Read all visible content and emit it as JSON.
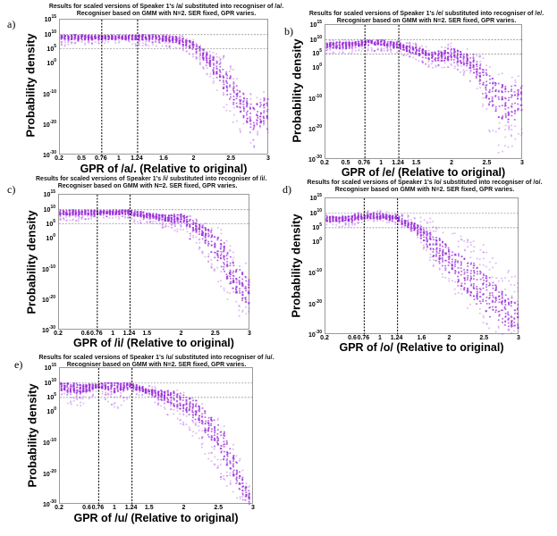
{
  "figure": {
    "panels": [
      {
        "letter": "a)",
        "title_line1": "Results for scaled versions of Speaker 1's /a/ substituted into recogniser of /a/.",
        "title_line2": "Recogniser based on GMM with N=2. SER fixed, GPR varies.",
        "xlabel": "GPR of /a/. (Relative to original)",
        "ylabel": "Probability density",
        "xticks": [
          "0.2",
          "0.5",
          "0.76",
          "1",
          "1.24",
          "1.6",
          "2",
          "2.5",
          "3"
        ],
        "yticks": [
          "10^15",
          "10^10",
          "10^5",
          "10^0",
          "10^-10",
          "10^-20",
          "10^-30"
        ]
      },
      {
        "letter": "b)",
        "title_line1": "Results for scaled versions of Speaker 1's /e/ substituted into recogniser of /e/.",
        "title_line2": "Recogniser based on GMM with N=2. SER fixed, GPR varies.",
        "xlabel": "GPR of /e/ (Relative to original)",
        "ylabel": "Probability density",
        "xticks": [
          "0.2",
          "0.5",
          "0.76",
          "1",
          "1.24",
          "1.5",
          "2",
          "2.5",
          "3"
        ],
        "yticks": [
          "10^15",
          "10^10",
          "10^5",
          "10^0",
          "10^-10",
          "10^-20",
          "10^-30"
        ]
      },
      {
        "letter": "c)",
        "title_line1": "Results for scaled versions of Speaker 1's /i/ substituted into recogniser of /i/.",
        "title_line2": "Recogniser based on GMM with N=2. SER fixed, GPR varies.",
        "xlabel": "GPR of /i/ (Relative to original)",
        "ylabel": "Probability density",
        "xticks": [
          "0.2",
          "0.6",
          "0.76",
          "1",
          "1.24",
          "1.5",
          "2",
          "2.5",
          "3"
        ],
        "yticks": [
          "10^15",
          "10^10",
          "10^5",
          "10^0",
          "10^-10",
          "10^-20",
          "10^-30"
        ]
      },
      {
        "letter": "d)",
        "title_line1": "Results for scaled versions of Speaker 1's /o/ substituted into recogniser of /o/.",
        "title_line2": "Recogniser based on GMM with N=2. SER fixed, GPR varies.",
        "xlabel": "GPR of /o/ (Relative to original)",
        "ylabel": "Probability density",
        "xticks": [
          "0.2",
          "0.6",
          "0.76",
          "1",
          "1.24",
          "1.6",
          "2",
          "2.5",
          "3"
        ],
        "yticks": [
          "10^15",
          "10^10",
          "10^5",
          "10^0",
          "10^-10",
          "10^-20",
          "10^-30"
        ]
      },
      {
        "letter": "e)",
        "title_line1": "Results for scaled versions of Speaker 1's /u/ substituted into recogniser of /u/.",
        "title_line2": "Recogniser based on GMM with N=2. SER fixed, GPR varies.",
        "xlabel": "GPR of /u/ (Relative to original)",
        "ylabel": "Probability density",
        "xticks": [
          "0.2",
          "0.6",
          "0.76",
          "1",
          "1.24",
          "1.5",
          "2",
          "2.5",
          "3"
        ],
        "yticks": [
          "10^15",
          "10^10",
          "10^5",
          "10^0",
          "10^-10",
          "10^-20",
          "10^-30"
        ]
      }
    ]
  },
  "chart_data": [
    {
      "type": "scatter",
      "panel": "a",
      "title": "Results for scaled versions of Speaker 1's /a/ substituted into recogniser of /a/. Recogniser based on GMM with N=2. SER fixed, GPR varies.",
      "xlabel": "GPR of /a/. (Relative to original)",
      "ylabel": "Probability density",
      "xlim": [
        0.2,
        3
      ],
      "ylim_exponent": [
        -30,
        15
      ],
      "yscale": "log",
      "vlines": [
        0.76,
        1.24
      ],
      "hlines_exponent": [
        10,
        5
      ],
      "color": "#9b30d9",
      "envelope": {
        "x": [
          0.2,
          0.5,
          0.76,
          1.0,
          1.24,
          1.5,
          1.8,
          2.0,
          2.2,
          2.4,
          2.6,
          2.8,
          3.0
        ],
        "upper_exp": [
          10,
          10,
          10,
          10,
          10,
          10,
          10,
          8,
          5,
          3,
          -5,
          -10,
          -8
        ],
        "lower_exp": [
          6,
          6,
          7,
          7,
          6,
          6,
          5,
          2,
          -5,
          -15,
          -22,
          -28,
          -24
        ],
        "median_exp": [
          9,
          9,
          9,
          9,
          9,
          9,
          8,
          6,
          1,
          -5,
          -12,
          -18,
          -14
        ]
      }
    },
    {
      "type": "scatter",
      "panel": "b",
      "title": "Results for scaled versions of Speaker 1's /e/ substituted into recogniser of /e/. Recogniser based on GMM with N=2. SER fixed, GPR varies.",
      "xlabel": "GPR of /e/ (Relative to original)",
      "ylabel": "Probability density",
      "xlim": [
        0.2,
        3
      ],
      "ylim_exponent": [
        -30,
        15
      ],
      "yscale": "log",
      "vlines": [
        0.76,
        1.24
      ],
      "hlines_exponent": [
        10,
        5
      ],
      "color": "#9b30d9",
      "envelope": {
        "x": [
          0.2,
          0.5,
          0.76,
          1.0,
          1.24,
          1.5,
          1.7,
          2.0,
          2.2,
          2.4,
          2.6,
          2.8,
          3.0
        ],
        "upper_exp": [
          10,
          10,
          10,
          10,
          10,
          9,
          7,
          9,
          7,
          5,
          0,
          -3,
          -2
        ],
        "lower_exp": [
          5,
          5,
          6,
          6,
          5,
          3,
          0,
          0,
          -3,
          -10,
          -28,
          -28,
          -22
        ],
        "median_exp": [
          8,
          8,
          9,
          9,
          8,
          6,
          4,
          5,
          3,
          -2,
          -10,
          -12,
          -10
        ]
      }
    },
    {
      "type": "scatter",
      "panel": "c",
      "title": "Results for scaled versions of Speaker 1's /i/ substituted into recogniser of /i/. Recogniser based on GMM with N=2. SER fixed, GPR varies.",
      "xlabel": "GPR of /i/ (Relative to original)",
      "ylabel": "Probability density",
      "xlim": [
        0.2,
        3
      ],
      "ylim_exponent": [
        -30,
        15
      ],
      "yscale": "log",
      "vlines": [
        0.76,
        1.24
      ],
      "hlines_exponent": [
        10,
        5
      ],
      "color": "#9b30d9",
      "envelope": {
        "x": [
          0.2,
          0.5,
          0.76,
          1.0,
          1.24,
          1.5,
          1.8,
          2.0,
          2.2,
          2.4,
          2.6,
          2.8,
          3.0
        ],
        "upper_exp": [
          10,
          10,
          10,
          10,
          10,
          9,
          8,
          9,
          7,
          6,
          3,
          -5,
          -8
        ],
        "lower_exp": [
          6,
          6,
          7,
          7,
          6,
          5,
          3,
          2,
          -2,
          -8,
          -18,
          -25,
          -28
        ],
        "median_exp": [
          9,
          9,
          9,
          9,
          9,
          8,
          7,
          7,
          4,
          0,
          -6,
          -14,
          -18
        ]
      }
    },
    {
      "type": "scatter",
      "panel": "d",
      "title": "Results for scaled versions of Speaker 1's /o/ substituted into recogniser of /o/. Recogniser based on GMM with N=2. SER fixed, GPR varies.",
      "xlabel": "GPR of /o/ (Relative to original)",
      "ylabel": "Probability density",
      "xlim": [
        0.2,
        3
      ],
      "ylim_exponent": [
        -30,
        15
      ],
      "yscale": "log",
      "vlines": [
        0.76,
        1.24
      ],
      "hlines_exponent": [
        10,
        5
      ],
      "color": "#9b30d9",
      "envelope": {
        "x": [
          0.2,
          0.5,
          0.76,
          1.0,
          1.24,
          1.5,
          1.8,
          2.0,
          2.2,
          2.4,
          2.6,
          2.8,
          3.0
        ],
        "upper_exp": [
          10,
          9,
          11,
          11,
          10,
          9,
          8,
          4,
          2,
          0,
          -2,
          -8,
          -12
        ],
        "lower_exp": [
          6,
          5,
          7,
          7,
          6,
          3,
          -10,
          -15,
          -20,
          -26,
          -29,
          -30,
          -30
        ],
        "median_exp": [
          8,
          8,
          9,
          9,
          8,
          5,
          -2,
          -6,
          -10,
          -14,
          -18,
          -22,
          -24
        ]
      }
    },
    {
      "type": "scatter",
      "panel": "e",
      "title": "Results for scaled versions of Speaker 1's /u/ substituted into recogniser of /u/. Recogniser based on GMM with N=2. SER fixed, GPR varies.",
      "xlabel": "GPR of /u/ (Relative to original)",
      "ylabel": "Probability density",
      "xlim": [
        0.2,
        3
      ],
      "ylim_exponent": [
        -30,
        15
      ],
      "yscale": "log",
      "vlines": [
        0.76,
        1.24
      ],
      "hlines_exponent": [
        10,
        5
      ],
      "color": "#9b30d9",
      "envelope": {
        "x": [
          0.2,
          0.5,
          0.76,
          1.0,
          1.24,
          1.5,
          1.8,
          2.0,
          2.2,
          2.4,
          2.6,
          2.8,
          2.9
        ],
        "upper_exp": [
          10,
          10,
          10,
          10,
          10,
          9,
          8,
          7,
          4,
          0,
          -5,
          -15,
          -22
        ],
        "lower_exp": [
          3,
          2,
          7,
          0,
          6,
          5,
          -2,
          -6,
          -10,
          -18,
          -24,
          -30,
          -30
        ],
        "median_exp": [
          9,
          8,
          9,
          9,
          9,
          7,
          5,
          3,
          0,
          -6,
          -12,
          -22,
          -27
        ]
      }
    }
  ]
}
